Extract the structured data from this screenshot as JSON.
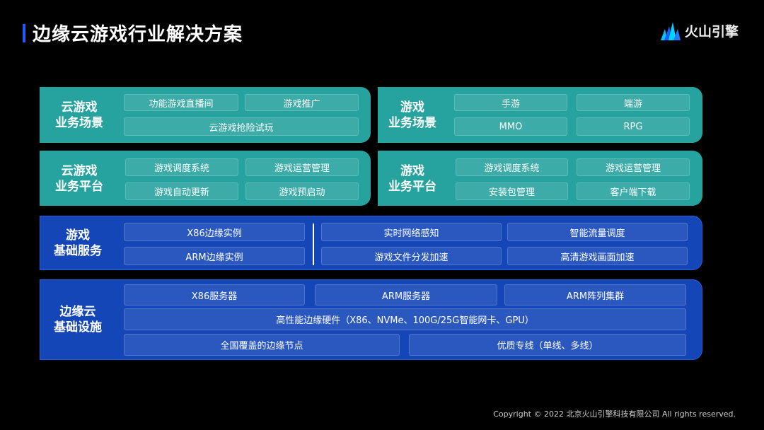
{
  "header": {
    "title": "边缘云游戏行业解决方案",
    "logo_text": "火山引擎"
  },
  "colors": {
    "accent": "#1f5cff",
    "teal_panel": "#27a39f",
    "blue_panel": "#1446b8"
  },
  "layers": [
    {
      "label": "云游戏\n业务场景",
      "cells": [
        "功能游戏直播间",
        "游戏推广",
        "云游戏抢险试玩"
      ]
    },
    {
      "label": "游戏\n业务场景",
      "cells": [
        "手游",
        "端游",
        "MMO",
        "RPG"
      ]
    },
    {
      "label": "云游戏\n业务平台",
      "cells": [
        "游戏调度系统",
        "游戏运营管理",
        "游戏自动更新",
        "游戏预启动"
      ]
    },
    {
      "label": "游戏\n业务平台",
      "cells": [
        "游戏调度系统",
        "游戏运营管理",
        "安装包管理",
        "客户端下载"
      ]
    },
    {
      "label": "游戏\n基础服务",
      "cells": [
        "X86边缘实例",
        "ARM边缘实例",
        "实时网络感知",
        "智能流量调度",
        "游戏文件分发加速",
        "高清游戏画面加速"
      ]
    },
    {
      "label": "边缘云\n基础设施",
      "cells": [
        "X86服务器",
        "ARM服务器",
        "ARM阵列集群",
        "高性能边缘硬件（X86、NVMe、100G/25G智能网卡、GPU）",
        "全国覆盖的边缘节点",
        "优质专线（单线、多线）"
      ]
    }
  ],
  "footer": {
    "copyright": "Copyright © 2022 北京火山引擎科技有限公司 All rights reserved."
  }
}
